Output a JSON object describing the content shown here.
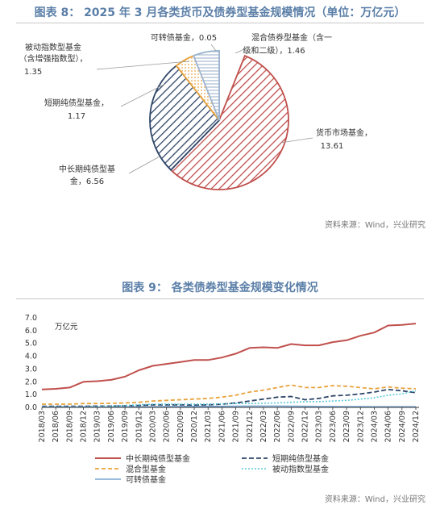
{
  "figure1": {
    "title": "图表 8： 2025 年 3 月各类货币及债券型基金规模情况（单位：万亿元）",
    "source": "资料来源：Wind，兴业研究"
  },
  "figure2": {
    "title": "图表 9： 各类债券型基金规模变化情况",
    "source": "资料来源：Wind，兴业研究"
  },
  "chart_data": [
    {
      "type": "pie",
      "title": "图表 8： 2025 年 3 月各类货币及债券型基金规模情况（单位：万亿元）",
      "slices": [
        {
          "name": "货币市场基金",
          "value": 13.61,
          "line1": "货币市场基金，",
          "line2": "13.61",
          "color": "#c0504d"
        },
        {
          "name": "中长期纯债型基金",
          "value": 6.56,
          "line1": "中长期纯债型基",
          "line2": "金，6.56",
          "color": "#2f4669"
        },
        {
          "name": "短期纯债型基金",
          "value": 1.17,
          "line1": "短期纯债型基金，",
          "line2": "1.17",
          "color": "#e8a33d"
        },
        {
          "name": "被动指数型基金（含增强指数型）",
          "value": 1.35,
          "line1": "被动指数型基金",
          "line2": "（含增强指数型），",
          "line3": "1.35",
          "color": "#5bc8d8"
        },
        {
          "name": "可转债基金",
          "value": 0.05,
          "line1": "可转债基金，0.05",
          "color": "#7aa7d4"
        },
        {
          "name": "混合债券型基金（含一级和二级）",
          "value": 1.46,
          "line1": "混合债券型基金（含一",
          "line2": "级和二级），1.46",
          "color": "#9fb4cf"
        }
      ]
    },
    {
      "type": "line",
      "title": "图表 9： 各类债券型基金规模变化情况",
      "unit_label": "万亿元",
      "ylim": [
        0,
        7
      ],
      "yticks": [
        "0.0",
        "1.0",
        "2.0",
        "3.0",
        "4.0",
        "5.0",
        "6.0",
        "7.0"
      ],
      "x": [
        "2018/03",
        "2018/06",
        "2018/09",
        "2018/12",
        "2019/03",
        "2019/06",
        "2019/09",
        "2019/12",
        "2020/03",
        "2020/06",
        "2020/09",
        "2020/12",
        "2021/03",
        "2021/06",
        "2021/09",
        "2021/12",
        "2022/03",
        "2022/06",
        "2022/09",
        "2022/12",
        "2023/03",
        "2023/06",
        "2023/09",
        "2023/12",
        "2024/03",
        "2024/06",
        "2024/09",
        "2024/12"
      ],
      "series": [
        {
          "name": "中长期纯债型基金",
          "color": "#c0504d",
          "dash": "",
          "width": 2,
          "values": [
            1.4,
            1.45,
            1.55,
            2.0,
            2.05,
            2.15,
            2.4,
            2.9,
            3.25,
            3.4,
            3.55,
            3.7,
            3.7,
            3.9,
            4.2,
            4.65,
            4.7,
            4.65,
            4.95,
            4.85,
            4.85,
            5.1,
            5.25,
            5.6,
            5.85,
            6.4,
            6.45,
            6.55
          ]
        },
        {
          "name": "短期纯债型基金",
          "color": "#2f4669",
          "dash": "6,3",
          "width": 1.8,
          "values": [
            0.08,
            0.08,
            0.08,
            0.08,
            0.1,
            0.1,
            0.12,
            0.15,
            0.2,
            0.2,
            0.2,
            0.18,
            0.2,
            0.25,
            0.35,
            0.5,
            0.65,
            0.8,
            0.85,
            0.6,
            0.7,
            0.9,
            0.95,
            1.05,
            1.2,
            1.4,
            1.3,
            1.15
          ]
        },
        {
          "name": "混合型基金",
          "color": "#e8a33d",
          "dash": "5,3",
          "width": 1.8,
          "values": [
            0.25,
            0.25,
            0.25,
            0.3,
            0.3,
            0.32,
            0.35,
            0.4,
            0.5,
            0.55,
            0.6,
            0.65,
            0.7,
            0.8,
            0.95,
            1.2,
            1.35,
            1.55,
            1.75,
            1.55,
            1.55,
            1.7,
            1.65,
            1.55,
            1.45,
            1.6,
            1.5,
            1.45
          ]
        },
        {
          "name": "被动指数型基金",
          "color": "#5bc8d8",
          "dash": "2,2",
          "width": 1.6,
          "values": [
            0.05,
            0.05,
            0.05,
            0.05,
            0.08,
            0.1,
            0.15,
            0.2,
            0.25,
            0.25,
            0.25,
            0.25,
            0.25,
            0.28,
            0.3,
            0.3,
            0.32,
            0.35,
            0.4,
            0.45,
            0.45,
            0.5,
            0.55,
            0.65,
            0.75,
            0.95,
            1.05,
            1.3
          ]
        },
        {
          "name": "可转债基金",
          "color": "#7aa7d4",
          "dash": "",
          "width": 1.6,
          "values": [
            0.03,
            0.03,
            0.03,
            0.03,
            0.03,
            0.03,
            0.04,
            0.05,
            0.05,
            0.06,
            0.07,
            0.08,
            0.08,
            0.08,
            0.09,
            0.1,
            0.1,
            0.1,
            0.09,
            0.08,
            0.07,
            0.07,
            0.06,
            0.06,
            0.05,
            0.05,
            0.05,
            0.05
          ]
        }
      ]
    }
  ]
}
